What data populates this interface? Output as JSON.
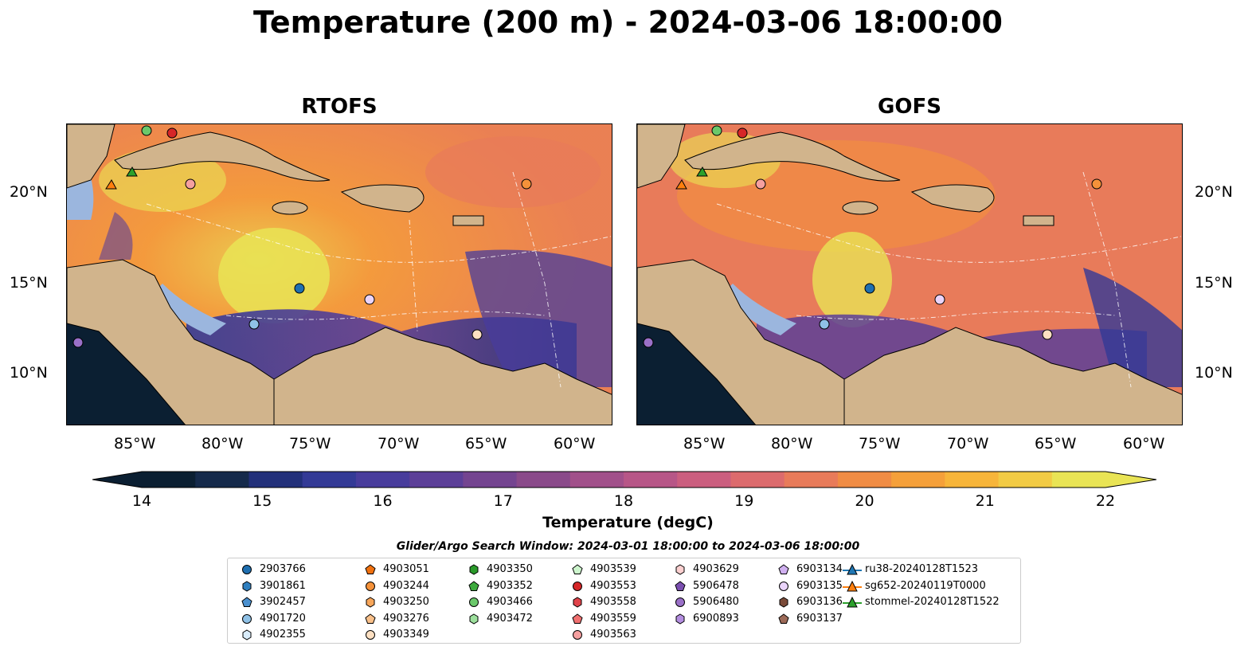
{
  "title": "Temperature (200 m) - 2024-03-06 18:00:00",
  "panels": [
    {
      "name": "RTOFS"
    },
    {
      "name": "GOFS"
    }
  ],
  "lat_labels": [
    "20°N",
    "15°N",
    "10°N"
  ],
  "lon_labels": [
    "85°W",
    "80°W",
    "75°W",
    "70°W",
    "65°W",
    "60°W"
  ],
  "colorbar": {
    "label": "Temperature (degC)",
    "ticks": [
      "14",
      "15",
      "16",
      "17",
      "18",
      "19",
      "20",
      "21",
      "22"
    ],
    "colors": [
      "#0b1f32",
      "#152a4b",
      "#22307a",
      "#333a96",
      "#483c9c",
      "#5c3f98",
      "#744490",
      "#8a4a8a",
      "#a1508a",
      "#b75687",
      "#cb5e7f",
      "#dc6b6d",
      "#e87b5a",
      "#f08c44",
      "#f5a03a",
      "#f7b53a",
      "#f2cb45",
      "#e9e455"
    ],
    "extend": "both"
  },
  "search_window": "Glider/Argo Search Window: 2024-03-01 18:00:00 to 2024-03-06 18:00:00",
  "legend": [
    {
      "label": "2903766",
      "marker": "circle",
      "color": "#1f6fb0"
    },
    {
      "label": "3901861",
      "marker": "hexagon",
      "color": "#2f7fbf"
    },
    {
      "label": "3902457",
      "marker": "pentagon",
      "color": "#4a90cf"
    },
    {
      "label": "4901720",
      "marker": "circle",
      "color": "#8fc1e6"
    },
    {
      "label": "4902355",
      "marker": "hexagon",
      "color": "#d9ecfa"
    },
    {
      "label": "4903051",
      "marker": "pentagon",
      "color": "#f0710f"
    },
    {
      "label": "4903244",
      "marker": "circle",
      "color": "#f5923a"
    },
    {
      "label": "4903250",
      "marker": "hexagon",
      "color": "#f7a65a"
    },
    {
      "label": "4903276",
      "marker": "pentagon",
      "color": "#f9c08a"
    },
    {
      "label": "4903349",
      "marker": "circle",
      "color": "#fde0c2"
    },
    {
      "label": "4903350",
      "marker": "hexagon",
      "color": "#2a9a2a"
    },
    {
      "label": "4903352",
      "marker": "pentagon",
      "color": "#3eaa3e"
    },
    {
      "label": "4903466",
      "marker": "circle",
      "color": "#6ac86a"
    },
    {
      "label": "4903472",
      "marker": "hexagon",
      "color": "#9de09d"
    },
    {
      "label": "4903539",
      "marker": "pentagon",
      "color": "#cdf5cd"
    },
    {
      "label": "4903553",
      "marker": "circle",
      "color": "#d62728"
    },
    {
      "label": "4903558",
      "marker": "hexagon",
      "color": "#e0434a"
    },
    {
      "label": "4903559",
      "marker": "pentagon",
      "color": "#f07070"
    },
    {
      "label": "4903563",
      "marker": "circle",
      "color": "#f5a0a0"
    },
    {
      "label": "4903629",
      "marker": "hexagon",
      "color": "#fcd0d0"
    },
    {
      "label": "5906478",
      "marker": "pentagon",
      "color": "#7b4fb0"
    },
    {
      "label": "5906480",
      "marker": "circle",
      "color": "#9a70c8"
    },
    {
      "label": "6900893",
      "marker": "hexagon",
      "color": "#b48ee0"
    },
    {
      "label": "6903134",
      "marker": "pentagon",
      "color": "#d0b0f0"
    },
    {
      "label": "6903135",
      "marker": "circle",
      "color": "#ead4fa"
    },
    {
      "label": "6903136",
      "marker": "hexagon",
      "color": "#7a4a38"
    },
    {
      "label": "6903137",
      "marker": "pentagon",
      "color": "#9c6a58"
    },
    {
      "label": "ru38-20240128T1523",
      "marker": "triangle-line",
      "color": "#1f77b4"
    },
    {
      "label": "sg652-20240119T0000",
      "marker": "triangle-line",
      "color": "#ff7f0e"
    },
    {
      "label": "stommel-20240128T1522",
      "marker": "triangle-line",
      "color": "#2ca02c"
    }
  ]
}
